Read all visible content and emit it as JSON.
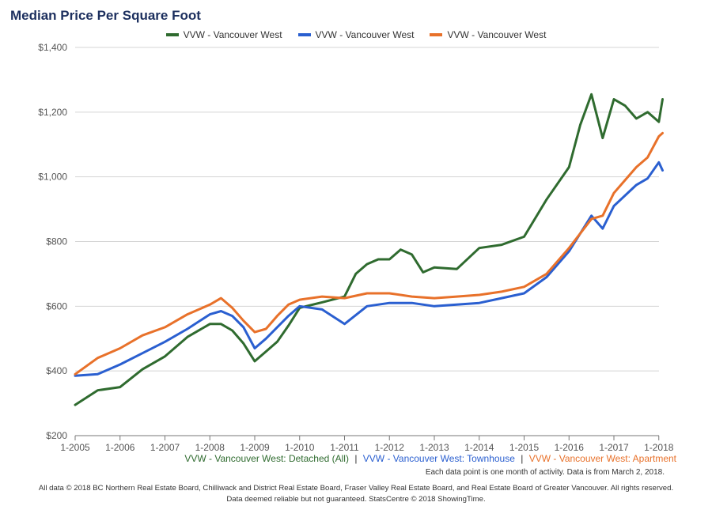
{
  "chart_data": {
    "type": "line",
    "title": "Median Price Per Square Foot",
    "x_tick_labels": [
      "1-2005",
      "1-2006",
      "1-2007",
      "1-2008",
      "1-2009",
      "1-2010",
      "1-2011",
      "1-2012",
      "1-2013",
      "1-2014",
      "1-2015",
      "1-2016",
      "1-2017",
      "1-2018"
    ],
    "y_tick_labels": [
      "$200",
      "$400",
      "$600",
      "$800",
      "$1,000",
      "$1,200",
      "$1,400"
    ],
    "ylim": [
      200,
      1400
    ],
    "grid": true,
    "legend_position": "top-center",
    "series": [
      {
        "name": "VVW - Vancouver West",
        "color": "#2f6b2f",
        "values": [
          {
            "x": "2005-01",
            "y": 295
          },
          {
            "x": "2005-07",
            "y": 340
          },
          {
            "x": "2006-01",
            "y": 350
          },
          {
            "x": "2006-07",
            "y": 405
          },
          {
            "x": "2007-01",
            "y": 445
          },
          {
            "x": "2007-07",
            "y": 505
          },
          {
            "x": "2008-01",
            "y": 545
          },
          {
            "x": "2008-04",
            "y": 545
          },
          {
            "x": "2008-07",
            "y": 525
          },
          {
            "x": "2008-10",
            "y": 485
          },
          {
            "x": "2009-01",
            "y": 430
          },
          {
            "x": "2009-04",
            "y": 460
          },
          {
            "x": "2009-07",
            "y": 490
          },
          {
            "x": "2009-10",
            "y": 540
          },
          {
            "x": "2010-01",
            "y": 595
          },
          {
            "x": "2010-07",
            "y": 612
          },
          {
            "x": "2011-01",
            "y": 630
          },
          {
            "x": "2011-04",
            "y": 700
          },
          {
            "x": "2011-07",
            "y": 730
          },
          {
            "x": "2011-10",
            "y": 745
          },
          {
            "x": "2012-01",
            "y": 745
          },
          {
            "x": "2012-04",
            "y": 775
          },
          {
            "x": "2012-07",
            "y": 760
          },
          {
            "x": "2012-10",
            "y": 705
          },
          {
            "x": "2013-01",
            "y": 720
          },
          {
            "x": "2013-07",
            "y": 715
          },
          {
            "x": "2014-01",
            "y": 780
          },
          {
            "x": "2014-07",
            "y": 790
          },
          {
            "x": "2015-01",
            "y": 815
          },
          {
            "x": "2015-07",
            "y": 930
          },
          {
            "x": "2016-01",
            "y": 1030
          },
          {
            "x": "2016-04",
            "y": 1160
          },
          {
            "x": "2016-07",
            "y": 1255
          },
          {
            "x": "2016-10",
            "y": 1120
          },
          {
            "x": "2017-01",
            "y": 1240
          },
          {
            "x": "2017-04",
            "y": 1220
          },
          {
            "x": "2017-07",
            "y": 1180
          },
          {
            "x": "2017-10",
            "y": 1200
          },
          {
            "x": "2018-01",
            "y": 1170
          },
          {
            "x": "2018-02",
            "y": 1240
          }
        ]
      },
      {
        "name": "VVW - Vancouver West",
        "color": "#2a5fd0",
        "values": [
          {
            "x": "2005-01",
            "y": 385
          },
          {
            "x": "2005-07",
            "y": 390
          },
          {
            "x": "2006-01",
            "y": 420
          },
          {
            "x": "2006-07",
            "y": 455
          },
          {
            "x": "2007-01",
            "y": 490
          },
          {
            "x": "2007-07",
            "y": 530
          },
          {
            "x": "2008-01",
            "y": 575
          },
          {
            "x": "2008-04",
            "y": 585
          },
          {
            "x": "2008-07",
            "y": 570
          },
          {
            "x": "2008-10",
            "y": 535
          },
          {
            "x": "2009-01",
            "y": 470
          },
          {
            "x": "2009-04",
            "y": 500
          },
          {
            "x": "2009-07",
            "y": 535
          },
          {
            "x": "2009-10",
            "y": 570
          },
          {
            "x": "2010-01",
            "y": 600
          },
          {
            "x": "2010-07",
            "y": 590
          },
          {
            "x": "2011-01",
            "y": 545
          },
          {
            "x": "2011-07",
            "y": 600
          },
          {
            "x": "2012-01",
            "y": 610
          },
          {
            "x": "2012-07",
            "y": 610
          },
          {
            "x": "2013-01",
            "y": 600
          },
          {
            "x": "2013-07",
            "y": 605
          },
          {
            "x": "2014-01",
            "y": 610
          },
          {
            "x": "2014-07",
            "y": 625
          },
          {
            "x": "2015-01",
            "y": 640
          },
          {
            "x": "2015-07",
            "y": 690
          },
          {
            "x": "2016-01",
            "y": 770
          },
          {
            "x": "2016-07",
            "y": 880
          },
          {
            "x": "2016-10",
            "y": 840
          },
          {
            "x": "2017-01",
            "y": 910
          },
          {
            "x": "2017-07",
            "y": 975
          },
          {
            "x": "2017-10",
            "y": 995
          },
          {
            "x": "2018-01",
            "y": 1045
          },
          {
            "x": "2018-02",
            "y": 1020
          }
        ]
      },
      {
        "name": "VVW - Vancouver West",
        "color": "#e8712a",
        "values": [
          {
            "x": "2005-01",
            "y": 390
          },
          {
            "x": "2005-07",
            "y": 440
          },
          {
            "x": "2006-01",
            "y": 470
          },
          {
            "x": "2006-07",
            "y": 510
          },
          {
            "x": "2007-01",
            "y": 535
          },
          {
            "x": "2007-07",
            "y": 575
          },
          {
            "x": "2008-01",
            "y": 605
          },
          {
            "x": "2008-04",
            "y": 625
          },
          {
            "x": "2008-07",
            "y": 595
          },
          {
            "x": "2008-10",
            "y": 555
          },
          {
            "x": "2009-01",
            "y": 520
          },
          {
            "x": "2009-04",
            "y": 530
          },
          {
            "x": "2009-07",
            "y": 570
          },
          {
            "x": "2009-10",
            "y": 605
          },
          {
            "x": "2010-01",
            "y": 620
          },
          {
            "x": "2010-07",
            "y": 630
          },
          {
            "x": "2011-01",
            "y": 625
          },
          {
            "x": "2011-07",
            "y": 640
          },
          {
            "x": "2012-01",
            "y": 640
          },
          {
            "x": "2012-07",
            "y": 630
          },
          {
            "x": "2013-01",
            "y": 625
          },
          {
            "x": "2013-07",
            "y": 630
          },
          {
            "x": "2014-01",
            "y": 635
          },
          {
            "x": "2014-07",
            "y": 645
          },
          {
            "x": "2015-01",
            "y": 660
          },
          {
            "x": "2015-07",
            "y": 700
          },
          {
            "x": "2016-01",
            "y": 780
          },
          {
            "x": "2016-07",
            "y": 870
          },
          {
            "x": "2016-10",
            "y": 880
          },
          {
            "x": "2017-01",
            "y": 950
          },
          {
            "x": "2017-07",
            "y": 1030
          },
          {
            "x": "2017-10",
            "y": 1060
          },
          {
            "x": "2018-01",
            "y": 1125
          },
          {
            "x": "2018-02",
            "y": 1135
          }
        ]
      }
    ]
  },
  "sub_legend": {
    "detached": "VVW - Vancouver West: Detached (All)",
    "townhouse": "VVW - Vancouver West: Townhouse",
    "apartment": "VVW - Vancouver West: Apartment",
    "separator": "|"
  },
  "note": "Each data point is one month of activity. Data is from March 2, 2018.",
  "footer": {
    "line1": "All data © 2018 BC Northern Real Estate Board, Chilliwack and District Real Estate Board, Fraser Valley Real Estate Board, and Real Estate Board of Greater Vancouver. All rights reserved.",
    "line2": "Data deemed reliable but not guaranteed. StatsCentre © 2018 ShowingTime."
  }
}
